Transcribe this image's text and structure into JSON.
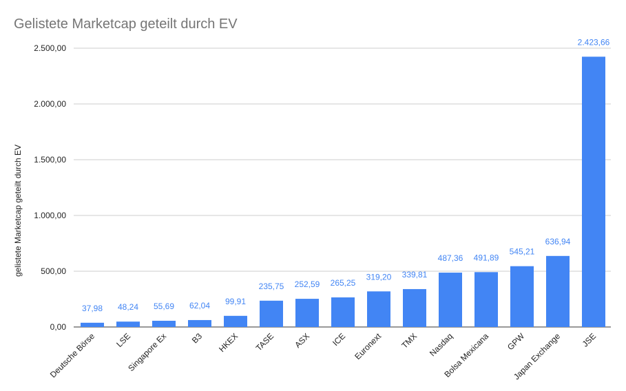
{
  "chart_data": {
    "type": "bar",
    "title": "Gelistete Marketcap geteilt durch EV",
    "xlabel": "",
    "ylabel": "gelistete Marketcap geteilt durch EV",
    "ylim": [
      0,
      2500
    ],
    "yticks": [
      0,
      500,
      1000,
      1500,
      2000,
      2500
    ],
    "ytick_labels": [
      "0,00",
      "500,00",
      "1.000,00",
      "1.500,00",
      "2.000,00",
      "2.500,00"
    ],
    "grid": true,
    "bar_color": "#4285f4",
    "label_color": "#4285f4",
    "categories": [
      "Deutsche Börse",
      "LSE",
      "Singapore Ex",
      "B3",
      "HKEX",
      "TASE",
      "ASX",
      "ICE",
      "Euronext",
      "TMX",
      "Nasdaq",
      "Bolsa Mexicana",
      "GPW",
      "Japan Exchange",
      "JSE"
    ],
    "values": [
      37.98,
      48.24,
      55.69,
      62.04,
      99.91,
      235.75,
      252.59,
      265.25,
      319.2,
      339.81,
      487.36,
      491.89,
      545.21,
      636.94,
      2423.66
    ],
    "value_labels": [
      "37,98",
      "48,24",
      "55,69",
      "62,04",
      "99,91",
      "235,75",
      "252,59",
      "265,25",
      "319,20",
      "339,81",
      "487,36",
      "491,89",
      "545,21",
      "636,94",
      "2.423,66"
    ]
  }
}
